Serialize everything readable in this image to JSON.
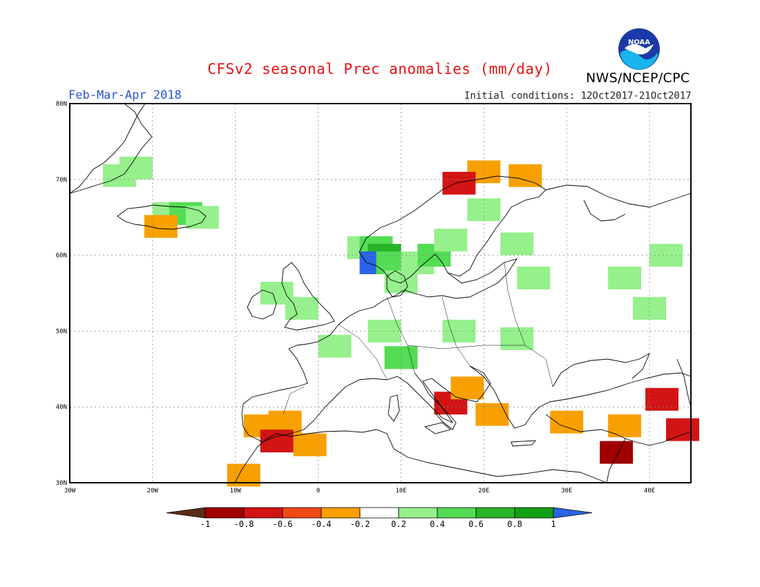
{
  "title": "CFSv2 seasonal Prec anomalies (mm/day)",
  "season": "Feb-Mar-Apr 2018",
  "initial_conditions": "Initial conditions: 12Oct2017-21Oct2017",
  "agency": "NWS/NCEP/CPC",
  "logo_text": "NOAA",
  "colors": {
    "very_dry": "#5a2c14",
    "dry_m1": "#a00000",
    "dry_m08": "#d21414",
    "dry_m06": "#f04a14",
    "dry_m04": "#f8a000",
    "neutral": "#ffffff",
    "wet_02": "#96f08c",
    "wet_04": "#54dc54",
    "wet_06": "#28b428",
    "wet_08": "#14a014",
    "very_wet": "#2a64e6",
    "coast": "#000000",
    "grid": "#888888"
  },
  "map": {
    "lon_range": [
      -30,
      45
    ],
    "lat_range": [
      30,
      80
    ],
    "lat_ticks": [
      "80N",
      "70N",
      "60N",
      "50N",
      "40N",
      "30N"
    ],
    "lon_ticks": [
      "30W",
      "20W",
      "10W",
      "0",
      "10E",
      "20E",
      "30E",
      "40E"
    ],
    "anomaly_cells": [
      {
        "lon": -22,
        "lat": 71.5,
        "v": 0.3
      },
      {
        "lon": -24,
        "lat": 70.5,
        "v": 0.3
      },
      {
        "lon": -18,
        "lat": 65.5,
        "v": 0.3
      },
      {
        "lon": -16,
        "lat": 65.5,
        "v": 0.5
      },
      {
        "lon": -14,
        "lat": 65,
        "v": 0.3
      },
      {
        "lon": -19,
        "lat": 63.8,
        "v": -0.3
      },
      {
        "lon": 5.5,
        "lat": 61,
        "v": 0.3
      },
      {
        "lon": 7,
        "lat": 61,
        "v": 0.5
      },
      {
        "lon": 8,
        "lat": 60,
        "v": 0.7
      },
      {
        "lon": 7,
        "lat": 59,
        "v": 1.0
      },
      {
        "lon": 9,
        "lat": 59,
        "v": 0.5
      },
      {
        "lon": 12,
        "lat": 59,
        "v": 0.3
      },
      {
        "lon": 14,
        "lat": 60,
        "v": 0.5
      },
      {
        "lon": 16,
        "lat": 62,
        "v": 0.3
      },
      {
        "lon": 10,
        "lat": 56.5,
        "v": 0.3
      },
      {
        "lon": 20,
        "lat": 66,
        "v": 0.3
      },
      {
        "lon": 24,
        "lat": 61.5,
        "v": 0.3
      },
      {
        "lon": 26,
        "lat": 57,
        "v": 0.3
      },
      {
        "lon": 37,
        "lat": 57,
        "v": 0.3
      },
      {
        "lon": 42,
        "lat": 60,
        "v": 0.3
      },
      {
        "lon": 40,
        "lat": 53,
        "v": 0.3
      },
      {
        "lon": -5,
        "lat": 55,
        "v": 0.3
      },
      {
        "lon": -2,
        "lat": 53,
        "v": 0.3
      },
      {
        "lon": 2,
        "lat": 48,
        "v": 0.3
      },
      {
        "lon": 8,
        "lat": 50,
        "v": 0.3
      },
      {
        "lon": 10,
        "lat": 46.5,
        "v": 0.5
      },
      {
        "lon": 17,
        "lat": 50,
        "v": 0.3
      },
      {
        "lon": 24,
        "lat": 49,
        "v": 0.3
      },
      {
        "lon": -7,
        "lat": 37.5,
        "v": -0.3
      },
      {
        "lon": -4,
        "lat": 38,
        "v": -0.3
      },
      {
        "lon": -5,
        "lat": 35.5,
        "v": -0.7
      },
      {
        "lon": -1,
        "lat": 35,
        "v": -0.3
      },
      {
        "lon": -9,
        "lat": 31,
        "v": -0.3
      },
      {
        "lon": 16,
        "lat": 40.5,
        "v": -0.6
      },
      {
        "lon": 21,
        "lat": 39,
        "v": -0.3
      },
      {
        "lon": 18,
        "lat": 42.5,
        "v": -0.3
      },
      {
        "lon": 30,
        "lat": 38,
        "v": -0.3
      },
      {
        "lon": 37,
        "lat": 37.5,
        "v": -0.3
      },
      {
        "lon": 36,
        "lat": 34,
        "v": -0.8
      },
      {
        "lon": 44,
        "lat": 37,
        "v": -0.6
      },
      {
        "lon": 41.5,
        "lat": 41,
        "v": -0.6
      },
      {
        "lon": 20,
        "lat": 71,
        "v": -0.3
      },
      {
        "lon": 25,
        "lat": 70.5,
        "v": -0.3
      },
      {
        "lon": 17,
        "lat": 69.5,
        "v": -0.6
      }
    ]
  },
  "colorbar": {
    "labels": [
      "-1",
      "-0.8",
      "-0.6",
      "-0.4",
      "-0.2",
      "0.2",
      "0.4",
      "0.6",
      "0.8",
      "1"
    ]
  }
}
